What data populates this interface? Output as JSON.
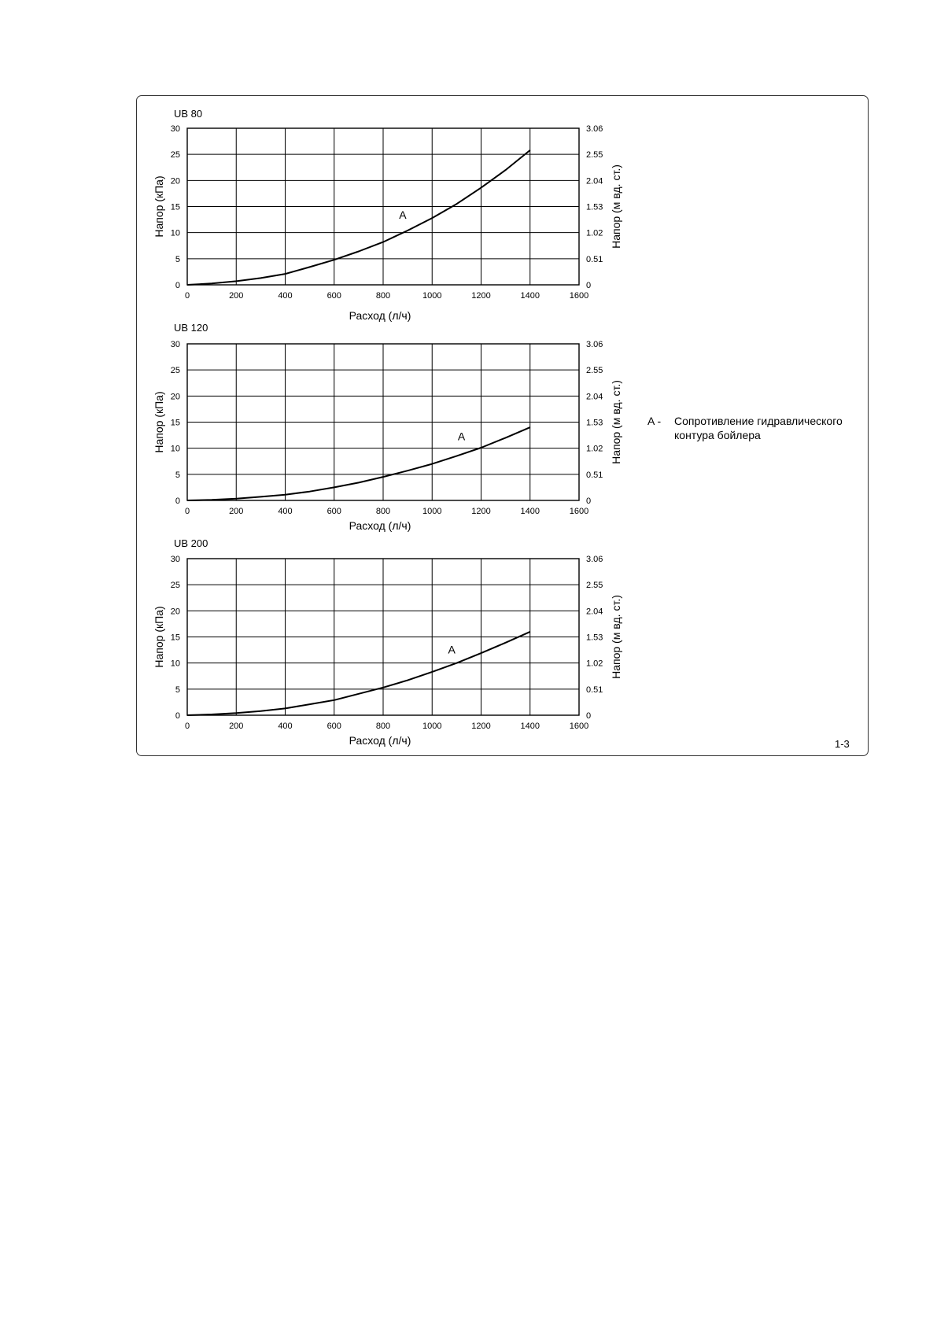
{
  "chart_data": [
    {
      "type": "line",
      "title": "UB 80",
      "xlabel": "Расход (л/ч)",
      "ylabel": "Напор (кПа)",
      "y2label": "Напор (м вд. ст.)",
      "xlim": [
        0,
        1600
      ],
      "ylim": [
        0,
        30
      ],
      "xticks": [
        "0",
        "200",
        "400",
        "600",
        "800",
        "1000",
        "1200",
        "1400",
        "1600"
      ],
      "yticks": [
        "0",
        "5",
        "10",
        "15",
        "20",
        "25",
        "30"
      ],
      "y2ticks": [
        "0",
        "0.51",
        "1.02",
        "1.53",
        "2.04",
        "2.55",
        "3.06"
      ],
      "grid": true,
      "series": [
        {
          "name": "A",
          "x": [
            0,
            100,
            200,
            300,
            400,
            500,
            600,
            700,
            800,
            900,
            1000,
            1100,
            1200,
            1300,
            1400
          ],
          "y": [
            0,
            0.25,
            0.7,
            1.3,
            2.1,
            3.4,
            4.8,
            6.4,
            8.2,
            10.4,
            12.8,
            15.5,
            18.6,
            22,
            25.8
          ]
        }
      ],
      "annotations": [
        {
          "text": "A",
          "x": 880,
          "y": 12.7
        }
      ]
    },
    {
      "type": "line",
      "title": "UB 120",
      "xlabel": "Расход (л/ч)",
      "ylabel": "Напор (кПа)",
      "y2label": "Напор (м вд. ст.)",
      "xlim": [
        0,
        1600
      ],
      "ylim": [
        0,
        30
      ],
      "xticks": [
        "0",
        "200",
        "400",
        "600",
        "800",
        "1000",
        "1200",
        "1400",
        "1600"
      ],
      "yticks": [
        "0",
        "5",
        "10",
        "15",
        "20",
        "25",
        "30"
      ],
      "y2ticks": [
        "0",
        "0.51",
        "1.02",
        "1.53",
        "2.04",
        "2.55",
        "3.06"
      ],
      "grid": true,
      "series": [
        {
          "name": "A",
          "x": [
            0,
            100,
            200,
            300,
            400,
            500,
            600,
            700,
            800,
            900,
            1000,
            1100,
            1200,
            1300,
            1400
          ],
          "y": [
            0,
            0.1,
            0.35,
            0.7,
            1.1,
            1.7,
            2.5,
            3.4,
            4.5,
            5.7,
            7,
            8.5,
            10.1,
            12,
            14
          ]
        }
      ],
      "annotations": [
        {
          "text": "A",
          "x": 1120,
          "y": 11.5
        }
      ]
    },
    {
      "type": "line",
      "title": "UB 200",
      "xlabel": "Расход (л/ч)",
      "ylabel": "Напор (кПа)",
      "y2label": "Напор (м вд. ст.)",
      "xlim": [
        0,
        1600
      ],
      "ylim": [
        0,
        30
      ],
      "xticks": [
        "0",
        "200",
        "400",
        "600",
        "800",
        "1000",
        "1200",
        "1400",
        "1600"
      ],
      "yticks": [
        "0",
        "5",
        "10",
        "15",
        "20",
        "25",
        "30"
      ],
      "y2ticks": [
        "0",
        "0.51",
        "1.02",
        "1.53",
        "2.04",
        "2.55",
        "3.06"
      ],
      "grid": true,
      "series": [
        {
          "name": "A",
          "x": [
            0,
            100,
            200,
            300,
            400,
            500,
            600,
            700,
            800,
            900,
            1000,
            1100,
            1200,
            1300,
            1400
          ],
          "y": [
            0,
            0.15,
            0.4,
            0.8,
            1.3,
            2.1,
            2.9,
            4.1,
            5.3,
            6.7,
            8.3,
            10,
            11.9,
            13.9,
            16
          ]
        }
      ],
      "annotations": [
        {
          "text": "A",
          "x": 1080,
          "y": 11.8
        }
      ]
    }
  ],
  "legend": {
    "key": "A -",
    "text_line1": "Сопротивление гидравлического",
    "text_line2": "контура бойлера"
  },
  "page_number": "1-3"
}
